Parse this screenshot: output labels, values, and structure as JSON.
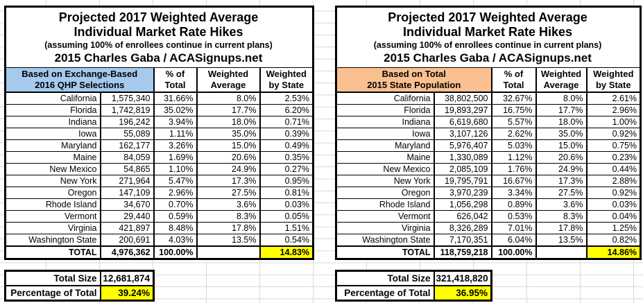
{
  "title": {
    "line1": "Projected 2017 Weighted Average",
    "line2": "Individual Market Rate Hikes",
    "line3": "(assuming 100% of enrollees continue in current plans)",
    "line4": "2015 Charles Gaba / ACASignups.net"
  },
  "columns": {
    "pct1": "% of",
    "pct2": "Total",
    "wavg1": "Weighted",
    "wavg2": "Average",
    "wstate1": "Weighted",
    "wstate2": "by State"
  },
  "colors": {
    "blue_header": "#A6C9EE",
    "orange_header": "#FAC090",
    "highlight_yellow": "#FFFF00",
    "grid_line": "#D8D8D8"
  },
  "left_table": {
    "basis_line1": "Based on Exchange-Based",
    "basis_line2": "2016 QHP Selections",
    "rows": [
      {
        "state": "California",
        "size": "1,575,340",
        "pct": "31.66%",
        "wavg": "8.0%",
        "wstate": "2.53%"
      },
      {
        "state": "Florida",
        "size": "1,742,819",
        "pct": "35.02%",
        "wavg": "17.7%",
        "wstate": "6.20%"
      },
      {
        "state": "Indiana",
        "size": "196,242",
        "pct": "3.94%",
        "wavg": "18.0%",
        "wstate": "0.71%"
      },
      {
        "state": "Iowa",
        "size": "55,089",
        "pct": "1.11%",
        "wavg": "35.0%",
        "wstate": "0.39%"
      },
      {
        "state": "Maryland",
        "size": "162,177",
        "pct": "3.26%",
        "wavg": "15.0%",
        "wstate": "0.49%"
      },
      {
        "state": "Maine",
        "size": "84,059",
        "pct": "1.69%",
        "wavg": "20.6%",
        "wstate": "0.35%"
      },
      {
        "state": "New Mexico",
        "size": "54,865",
        "pct": "1.10%",
        "wavg": "24.9%",
        "wstate": "0.27%"
      },
      {
        "state": "New York",
        "size": "271,964",
        "pct": "5.47%",
        "wavg": "17.3%",
        "wstate": "0.95%"
      },
      {
        "state": "Oregon",
        "size": "147,109",
        "pct": "2.96%",
        "wavg": "27.5%",
        "wstate": "0.81%"
      },
      {
        "state": "Rhode Island",
        "size": "34,670",
        "pct": "0.70%",
        "wavg": "3.6%",
        "wstate": "0.03%"
      },
      {
        "state": "Vermont",
        "size": "29,440",
        "pct": "0.59%",
        "wavg": "8.3%",
        "wstate": "0.05%"
      },
      {
        "state": "Virginia",
        "size": "421,897",
        "pct": "8.48%",
        "wavg": "17.8%",
        "wstate": "1.51%"
      },
      {
        "state": "Washington State",
        "size": "200,691",
        "pct": "4.03%",
        "wavg": "13.5%",
        "wstate": "0.54%"
      }
    ],
    "total": {
      "label": "TOTAL",
      "size": "4,976,362",
      "pct": "100.00%",
      "wavg": "",
      "wstate": "14.83%"
    },
    "summary": {
      "size_label": "Total Size",
      "size_value": "12,681,874",
      "pct_label": "Percentage of Total",
      "pct_value": "39.24%"
    }
  },
  "right_table": {
    "basis_line1": "Based on Total",
    "basis_line2": "2015 State Population",
    "rows": [
      {
        "state": "California",
        "size": "38,802,500",
        "pct": "32.67%",
        "wavg": "8.0%",
        "wstate": "2.61%"
      },
      {
        "state": "Florida",
        "size": "19,893,297",
        "pct": "16.75%",
        "wavg": "17.7%",
        "wstate": "2.96%"
      },
      {
        "state": "Indiana",
        "size": "6,619,680",
        "pct": "5.57%",
        "wavg": "18.0%",
        "wstate": "1.00%"
      },
      {
        "state": "Iowa",
        "size": "3,107,126",
        "pct": "2.62%",
        "wavg": "35.0%",
        "wstate": "0.92%"
      },
      {
        "state": "Maryland",
        "size": "5,976,407",
        "pct": "5.03%",
        "wavg": "15.0%",
        "wstate": "0.75%"
      },
      {
        "state": "Maine",
        "size": "1,330,089",
        "pct": "1.12%",
        "wavg": "20.6%",
        "wstate": "0.23%"
      },
      {
        "state": "New Mexico",
        "size": "2,085,109",
        "pct": "1.76%",
        "wavg": "24.9%",
        "wstate": "0.44%"
      },
      {
        "state": "New York",
        "size": "19,795,791",
        "pct": "16.67%",
        "wavg": "17.3%",
        "wstate": "2.88%"
      },
      {
        "state": "Oregon",
        "size": "3,970,239",
        "pct": "3.34%",
        "wavg": "27.5%",
        "wstate": "0.92%"
      },
      {
        "state": "Rhode Island",
        "size": "1,056,298",
        "pct": "0.89%",
        "wavg": "3.6%",
        "wstate": "0.03%"
      },
      {
        "state": "Vermont",
        "size": "626,042",
        "pct": "0.53%",
        "wavg": "8.3%",
        "wstate": "0.04%"
      },
      {
        "state": "Virginia",
        "size": "8,326,289",
        "pct": "7.01%",
        "wavg": "17.8%",
        "wstate": "1.25%"
      },
      {
        "state": "Washington State",
        "size": "7,170,351",
        "pct": "6.04%",
        "wavg": "13.5%",
        "wstate": "0.82%"
      }
    ],
    "total": {
      "label": "TOTAL",
      "size": "118,759,218",
      "pct": "100.00%",
      "wavg": "",
      "wstate": "14.86%"
    },
    "summary": {
      "size_label": "Total Size",
      "size_value": "321,418,820",
      "pct_label": "Percentage of Total",
      "pct_value": "36.95%"
    }
  }
}
